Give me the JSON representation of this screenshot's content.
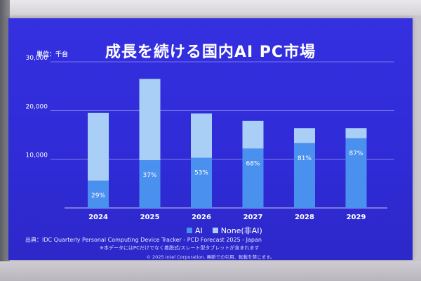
{
  "slide": {
    "title": "成長を続ける国内AI PC市場",
    "unit_label": "単位：千台",
    "source": "出典：IDC Quarterly Personal Computing Device Tracker - PCD Forecast 2025 - Japan",
    "note": "※本データにはPCだけでなく着脱式/スレート型タブレットが含まれます",
    "copyright": "© 2025 Intel Corporation. 無断での引用、転載を禁じます。"
  },
  "colors": {
    "ai": "#4a90ef",
    "non_ai": "#a9cff7",
    "background": "#3530e0",
    "gridline": "#8f8cf0"
  },
  "chart_data": {
    "type": "bar",
    "stacked": true,
    "title": "成長を続ける国内AI PC市場",
    "ylabel": "単位：千台",
    "ylim": [
      0,
      30000
    ],
    "y_ticks": [
      10000,
      20000,
      30000
    ],
    "y_tick_labels": [
      "10,000",
      "20,000",
      "30,000"
    ],
    "grid": true,
    "legend_position": "bottom",
    "categories": [
      "2024",
      "2025",
      "2026",
      "2027",
      "2028",
      "2029"
    ],
    "series": [
      {
        "name": "AI",
        "values": [
          5600,
          9800,
          10300,
          12200,
          13300,
          14300
        ]
      },
      {
        "name": "None(非AI)",
        "values": [
          13900,
          16700,
          9100,
          5700,
          3100,
          2100
        ]
      }
    ],
    "data_labels": [
      "29%",
      "37%",
      "53%",
      "68%",
      "81%",
      "87%"
    ]
  }
}
